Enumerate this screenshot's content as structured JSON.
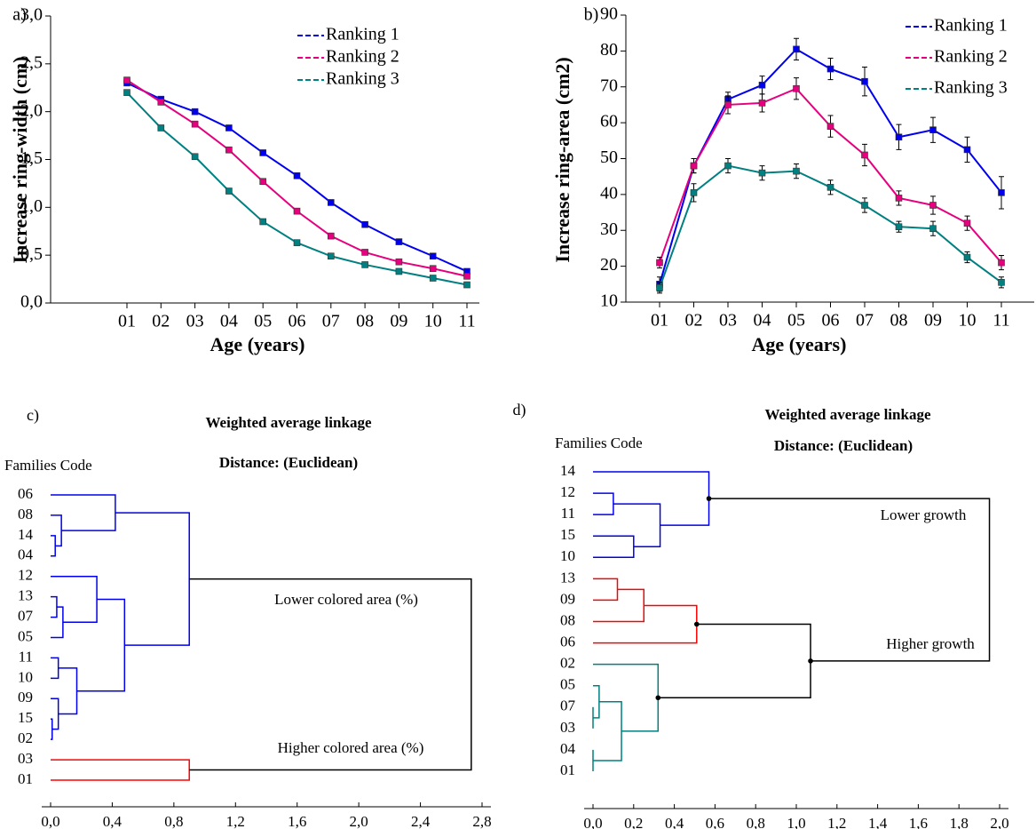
{
  "chart_data": [
    {
      "type": "line",
      "label": "a)",
      "ylabel": "Increase ring-width (cm)",
      "xlabel": "Age (years)",
      "categories": [
        "01",
        "02",
        "03",
        "04",
        "05",
        "06",
        "07",
        "08",
        "09",
        "10",
        "11"
      ],
      "ylim": [
        0,
        3
      ],
      "yticks": [
        {
          "value": 0,
          "label": "0,0"
        },
        {
          "value": 0.5,
          "label": "0,5"
        },
        {
          "value": 1,
          "label": "1,0"
        },
        {
          "value": 1.5,
          "label": "1,5"
        },
        {
          "value": 2,
          "label": "2,0"
        },
        {
          "value": 2.5,
          "label": "2,5"
        },
        {
          "value": 3,
          "label": "3,0"
        }
      ],
      "series": [
        {
          "name": "Ranking 1",
          "color": "#0000ee",
          "values": [
            2.3,
            2.13,
            2.0,
            1.83,
            1.57,
            1.33,
            1.05,
            0.82,
            0.64,
            0.49,
            0.33
          ]
        },
        {
          "name": "Ranking 2",
          "color": "#e6007e",
          "values": [
            2.33,
            2.1,
            1.87,
            1.6,
            1.27,
            0.96,
            0.7,
            0.53,
            0.43,
            0.36,
            0.28
          ]
        },
        {
          "name": "Ranking 3",
          "color": "#008080",
          "values": [
            2.2,
            1.83,
            1.53,
            1.17,
            0.85,
            0.63,
            0.49,
            0.4,
            0.33,
            0.26,
            0.19
          ]
        }
      ]
    },
    {
      "type": "line",
      "label": "b)",
      "ylabel": "Increase ring-area (cm2)",
      "xlabel": "Age (years)",
      "categories": [
        "01",
        "02",
        "03",
        "04",
        "05",
        "06",
        "07",
        "08",
        "09",
        "10",
        "11"
      ],
      "ylim": [
        10,
        90
      ],
      "yticks": [
        10,
        20,
        30,
        40,
        50,
        60,
        70,
        80,
        90
      ],
      "series": [
        {
          "name": "Ranking 1",
          "color": "#0000ee",
          "values": [
            15,
            48,
            66.5,
            70.5,
            80.5,
            75,
            71.5,
            56,
            58,
            52.5,
            40.5
          ],
          "errors": [
            2,
            2,
            2,
            2.5,
            3,
            3,
            4,
            3.5,
            3.5,
            3.5,
            4.5
          ]
        },
        {
          "name": "Ranking 2",
          "color": "#e6007e",
          "values": [
            21,
            48,
            65,
            65.5,
            69.5,
            59,
            51,
            39,
            37,
            32,
            21
          ],
          "errors": [
            1.5,
            2,
            2.5,
            2.5,
            3,
            3,
            3,
            2,
            2.5,
            2,
            2
          ]
        },
        {
          "name": "Ranking 3",
          "color": "#008080",
          "values": [
            14,
            40.5,
            48,
            46,
            46.5,
            42,
            37,
            31,
            30.5,
            22.5,
            15.5
          ],
          "errors": [
            1.5,
            2.5,
            2,
            2,
            2,
            2,
            2,
            1.5,
            2,
            1.5,
            1.5
          ]
        }
      ]
    },
    {
      "type": "dendrogram",
      "label": "c)",
      "title": "Weighted average linkage",
      "subtitle": "Distance: (Euclidean)",
      "leaf_title": "Families Code",
      "leaves": [
        "06",
        "08",
        "14",
        "04",
        "12",
        "13",
        "07",
        "05",
        "11",
        "10",
        "09",
        "15",
        "02",
        "03",
        "01"
      ],
      "merges": [
        {
          "children": [
            2,
            3
          ],
          "height": 0.03,
          "color": "#0000ee"
        },
        {
          "children": [
            1,
            15
          ],
          "height": 0.07,
          "color": "#0000ee"
        },
        {
          "children": [
            0,
            16
          ],
          "height": 0.42,
          "color": "#0000ee"
        },
        {
          "children": [
            5,
            6
          ],
          "height": 0.04,
          "color": "#0000ee"
        },
        {
          "children": [
            18,
            7
          ],
          "height": 0.08,
          "color": "#0000ee"
        },
        {
          "children": [
            4,
            19
          ],
          "height": 0.3,
          "color": "#0000ee"
        },
        {
          "children": [
            8,
            9
          ],
          "height": 0.05,
          "color": "#0000ee"
        },
        {
          "children": [
            11,
            12
          ],
          "height": 0.01,
          "color": "#0000ee"
        },
        {
          "children": [
            10,
            22
          ],
          "height": 0.05,
          "color": "#0000ee"
        },
        {
          "children": [
            21,
            23
          ],
          "height": 0.17,
          "color": "#0000ee"
        },
        {
          "children": [
            20,
            24
          ],
          "height": 0.48,
          "color": "#0000ee"
        },
        {
          "children": [
            17,
            25
          ],
          "height": 0.9,
          "color": "#0000ee"
        },
        {
          "children": [
            13,
            14
          ],
          "height": 0.9,
          "color": "#ff0000"
        },
        {
          "children": [
            26,
            27
          ],
          "height": 2.73,
          "color": "#000000"
        }
      ],
      "xlim": [
        0,
        2.8
      ],
      "xticks": [
        {
          "value": 0,
          "label": "0,0"
        },
        {
          "value": 0.4,
          "label": "0,4"
        },
        {
          "value": 0.8,
          "label": "0,8"
        },
        {
          "value": 1.2,
          "label": "1,2"
        },
        {
          "value": 1.6,
          "label": "1,6"
        },
        {
          "value": 2,
          "label": "2,0"
        },
        {
          "value": 2.4,
          "label": "2,4"
        },
        {
          "value": 2.8,
          "label": "2,8"
        }
      ],
      "annotations": [
        "Lower colored area (%)",
        "Higher colored area  (%)"
      ],
      "node_dots": false
    },
    {
      "type": "dendrogram",
      "label": "d)",
      "title": "Weighted average linkage",
      "subtitle": "Distance: (Euclidean)",
      "leaf_title": "Families Code",
      "leaves": [
        "14",
        "12",
        "11",
        "15",
        "10",
        "13",
        "09",
        "08",
        "06",
        "02",
        "05",
        "07",
        "03",
        "04",
        "01"
      ],
      "merges": [
        {
          "children": [
            1,
            2
          ],
          "height": 0.1,
          "color": "#0000ee"
        },
        {
          "children": [
            3,
            4
          ],
          "height": 0.2,
          "color": "#0000ee"
        },
        {
          "children": [
            15,
            16
          ],
          "height": 0.33,
          "color": "#0000ee"
        },
        {
          "children": [
            0,
            17
          ],
          "height": 0.57,
          "color": "#0000ee"
        },
        {
          "children": [
            5,
            6
          ],
          "height": 0.12,
          "color": "#ff0000"
        },
        {
          "children": [
            19,
            7
          ],
          "height": 0.25,
          "color": "#ff0000"
        },
        {
          "children": [
            20,
            8
          ],
          "height": 0.51,
          "color": "#ff0000"
        },
        {
          "children": [
            11,
            12
          ],
          "height": 0.0,
          "color": "#008080"
        },
        {
          "children": [
            10,
            22
          ],
          "height": 0.03,
          "color": "#008080"
        },
        {
          "children": [
            13,
            14
          ],
          "height": 0.0,
          "color": "#008080"
        },
        {
          "children": [
            23,
            24
          ],
          "height": 0.14,
          "color": "#008080"
        },
        {
          "children": [
            9,
            25
          ],
          "height": 0.32,
          "color": "#008080"
        },
        {
          "children": [
            21,
            26
          ],
          "height": 1.07,
          "color": "#000000"
        },
        {
          "children": [
            18,
            27
          ],
          "height": 1.95,
          "color": "#000000"
        }
      ],
      "xlim": [
        0,
        2
      ],
      "xticks": [
        {
          "value": 0,
          "label": "0,0"
        },
        {
          "value": 0.2,
          "label": "0,2"
        },
        {
          "value": 0.4,
          "label": "0,4"
        },
        {
          "value": 0.6,
          "label": "0,6"
        },
        {
          "value": 0.8,
          "label": "0,8"
        },
        {
          "value": 1,
          "label": "1,0"
        },
        {
          "value": 1.2,
          "label": "1,2"
        },
        {
          "value": 1.4,
          "label": "1,4"
        },
        {
          "value": 1.6,
          "label": "1,6"
        },
        {
          "value": 1.8,
          "label": "1,8"
        },
        {
          "value": 2,
          "label": "2,0"
        }
      ],
      "annotations": [
        "Lower growth",
        "Higher growth"
      ],
      "node_dots": true
    }
  ]
}
